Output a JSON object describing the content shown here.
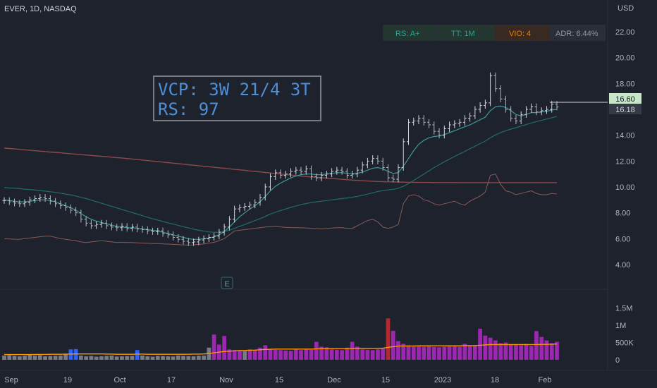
{
  "header": {
    "symbol_line": "EVER, 1D, NASDAQ",
    "currency": "USD"
  },
  "badges": [
    {
      "label": "RS: A+",
      "color": "#26a69a"
    },
    {
      "label": "TT: 1M",
      "color": "#26a69a"
    },
    {
      "label": "VIO: 4",
      "color": "#f57c00"
    },
    {
      "label": "ADR: 6.44%",
      "color": "#9598a1"
    }
  ],
  "annotation": {
    "line1": "VCP: 3W 21/4 3T",
    "line2": "RS: 97"
  },
  "price_labels": {
    "last": "16.60",
    "current": "16.18"
  },
  "earnings_marker": "E",
  "chart_data": {
    "type": "candlestick",
    "price_axis": {
      "ticks": [
        "22.00",
        "20.00",
        "18.00",
        "16.00",
        "14.00",
        "12.00",
        "10.00",
        "8.00",
        "6.00",
        "4.00"
      ],
      "range": [
        2,
        24
      ]
    },
    "volume_axis": {
      "ticks": [
        "1.5M",
        "1M",
        "500K",
        "0"
      ]
    },
    "x_labels": [
      "Sep",
      "19",
      "Oct",
      "17",
      "Nov",
      "15",
      "Dec",
      "15",
      "2023",
      "18",
      "Feb"
    ],
    "closes": [
      8.95,
      8.85,
      8.75,
      8.7,
      8.8,
      9.0,
      9.1,
      9.2,
      9.1,
      8.9,
      8.7,
      8.55,
      8.4,
      8.2,
      8.0,
      7.5,
      7.2,
      7.0,
      7.1,
      7.2,
      7.0,
      6.9,
      6.85,
      6.95,
      6.8,
      6.9,
      6.75,
      6.7,
      6.6,
      6.55,
      6.6,
      6.4,
      6.3,
      6.1,
      5.95,
      5.8,
      5.7,
      5.75,
      5.9,
      6.0,
      6.1,
      6.2,
      6.5,
      6.9,
      7.5,
      8.3,
      8.4,
      8.5,
      8.6,
      8.8,
      9.2,
      10.0,
      10.8,
      11.1,
      10.9,
      11.0,
      11.2,
      11.3,
      11.2,
      11.4,
      10.8,
      10.7,
      10.9,
      11.0,
      11.2,
      11.3,
      11.2,
      10.9,
      11.0,
      11.3,
      11.7,
      12.0,
      12.2,
      12.0,
      11.5,
      10.7,
      10.6,
      11.5,
      13.5,
      15.0,
      15.1,
      15.3,
      15.0,
      14.8,
      14.3,
      14.0,
      14.5,
      14.8,
      14.9,
      15.0,
      15.3,
      15.5,
      16.0,
      16.3,
      16.5,
      18.6,
      17.6,
      16.8,
      16.0,
      15.3,
      15.1,
      15.6,
      16.0,
      16.2,
      15.8,
      15.9,
      16.0,
      16.4,
      16.18
    ],
    "volumes_k": [
      120,
      130,
      110,
      100,
      115,
      140,
      120,
      130,
      100,
      110,
      115,
      120,
      160,
      300,
      310,
      120,
      100,
      110,
      90,
      100,
      110,
      120,
      95,
      100,
      105,
      110,
      280,
      120,
      100,
      90,
      110,
      105,
      100,
      95,
      120,
      110,
      105,
      100,
      115,
      120,
      350,
      730,
      440,
      690,
      300,
      280,
      260,
      250,
      300,
      290,
      350,
      420,
      300,
      290,
      280,
      270,
      260,
      300,
      280,
      310,
      290,
      520,
      380,
      360,
      300,
      290,
      280,
      350,
      520,
      380,
      300,
      290,
      280,
      300,
      320,
      1200,
      840,
      540,
      460,
      420,
      380,
      390,
      380,
      400,
      370,
      360,
      380,
      390,
      400,
      380,
      460,
      400,
      420,
      900,
      700,
      640,
      560,
      480,
      500,
      450,
      430,
      420,
      460,
      400,
      830,
      660,
      560,
      480,
      520
    ],
    "ma_short": [
      9.0,
      8.95,
      8.9,
      8.85,
      8.85,
      8.9,
      8.95,
      9.0,
      9.0,
      8.95,
      8.85,
      8.7,
      8.55,
      8.4,
      8.2,
      7.95,
      7.7,
      7.5,
      7.35,
      7.25,
      7.15,
      7.05,
      6.95,
      6.9,
      6.85,
      6.85,
      6.8,
      6.75,
      6.7,
      6.65,
      6.6,
      6.5,
      6.4,
      6.3,
      6.2,
      6.1,
      6.0,
      5.95,
      5.95,
      6.0,
      6.05,
      6.15,
      6.3,
      6.55,
      6.9,
      7.3,
      7.7,
      8.0,
      8.3,
      8.55,
      8.85,
      9.25,
      9.7,
      10.05,
      10.3,
      10.5,
      10.7,
      10.85,
      10.95,
      11.0,
      11.0,
      10.95,
      10.95,
      11.0,
      11.05,
      11.1,
      11.1,
      11.05,
      11.0,
      11.05,
      11.15,
      11.3,
      11.45,
      11.5,
      11.4,
      11.2,
      11.05,
      11.1,
      11.6,
      12.2,
      12.8,
      13.3,
      13.6,
      13.8,
      13.9,
      13.95,
      14.05,
      14.2,
      14.35,
      14.5,
      14.65,
      14.8,
      15.0,
      15.2,
      15.4,
      15.9,
      16.2,
      16.25,
      16.15,
      15.9,
      15.6,
      15.5,
      15.6,
      15.75,
      15.75,
      15.8,
      15.85,
      15.95,
      16.0
    ],
    "ma_mid": [
      9.95,
      9.92,
      9.9,
      9.87,
      9.83,
      9.8,
      9.76,
      9.72,
      9.68,
      9.63,
      9.58,
      9.52,
      9.45,
      9.38,
      9.3,
      9.2,
      9.1,
      8.98,
      8.86,
      8.74,
      8.62,
      8.5,
      8.38,
      8.26,
      8.14,
      8.02,
      7.9,
      7.78,
      7.66,
      7.54,
      7.43,
      7.33,
      7.23,
      7.13,
      7.03,
      6.93,
      6.83,
      6.73,
      6.65,
      6.58,
      6.52,
      6.5,
      6.5,
      6.55,
      6.65,
      6.8,
      6.95,
      7.1,
      7.25,
      7.4,
      7.55,
      7.72,
      7.9,
      8.05,
      8.18,
      8.3,
      8.42,
      8.53,
      8.63,
      8.72,
      8.79,
      8.85,
      8.9,
      8.95,
      9.0,
      9.05,
      9.1,
      9.15,
      9.2,
      9.27,
      9.35,
      9.45,
      9.55,
      9.65,
      9.72,
      9.77,
      9.82,
      9.9,
      10.05,
      10.25,
      10.5,
      10.75,
      11.0,
      11.25,
      11.5,
      11.72,
      11.95,
      12.15,
      12.35,
      12.55,
      12.75,
      12.95,
      13.15,
      13.35,
      13.55,
      13.8,
      14.02,
      14.2,
      14.35,
      14.47,
      14.58,
      14.7,
      14.82,
      14.95,
      15.05,
      15.15,
      15.25,
      15.35,
      15.45
    ],
    "ma_long": [
      13.0,
      12.97,
      12.94,
      12.9,
      12.87,
      12.84,
      12.8,
      12.77,
      12.74,
      12.7,
      12.67,
      12.64,
      12.6,
      12.57,
      12.54,
      12.5,
      12.47,
      12.44,
      12.4,
      12.37,
      12.34,
      12.3,
      12.27,
      12.24,
      12.2,
      12.16,
      12.12,
      12.08,
      12.04,
      12.0,
      11.96,
      11.92,
      11.88,
      11.84,
      11.8,
      11.76,
      11.72,
      11.68,
      11.64,
      11.6,
      11.56,
      11.52,
      11.48,
      11.44,
      11.4,
      11.36,
      11.32,
      11.28,
      11.24,
      11.2,
      11.16,
      11.12,
      11.08,
      11.04,
      11.0,
      10.96,
      10.92,
      10.88,
      10.84,
      10.8,
      10.77,
      10.74,
      10.71,
      10.68,
      10.65,
      10.62,
      10.59,
      10.56,
      10.53,
      10.5,
      10.48,
      10.46,
      10.44,
      10.42,
      10.41,
      10.4,
      10.39,
      10.38,
      10.37,
      10.36,
      10.36,
      10.35,
      10.35,
      10.35,
      10.34,
      10.34,
      10.34,
      10.34,
      10.34,
      10.33,
      10.33,
      10.33,
      10.33,
      10.33,
      10.33,
      10.33,
      10.33,
      10.33,
      10.33,
      10.33,
      10.33,
      10.33,
      10.33,
      10.33,
      10.33,
      10.33,
      10.33,
      10.33,
      10.33
    ],
    "rs_line": [
      6.0,
      5.98,
      5.96,
      5.95,
      6.0,
      6.05,
      6.1,
      6.15,
      6.2,
      6.2,
      6.1,
      6.0,
      5.95,
      5.9,
      5.85,
      5.75,
      5.7,
      5.75,
      5.8,
      5.85,
      5.8,
      5.75,
      5.7,
      5.72,
      5.7,
      5.7,
      5.68,
      5.66,
      5.64,
      5.62,
      5.62,
      5.6,
      5.58,
      5.56,
      5.54,
      5.52,
      5.5,
      5.52,
      5.56,
      5.6,
      5.66,
      5.72,
      5.85,
      6.0,
      6.3,
      6.6,
      6.65,
      6.7,
      6.75,
      6.8,
      6.85,
      6.9,
      6.92,
      6.95,
      6.9,
      6.88,
      6.86,
      6.85,
      6.84,
      6.83,
      6.8,
      6.78,
      6.76,
      6.78,
      6.82,
      6.85,
      6.85,
      6.8,
      6.8,
      7.0,
      7.2,
      7.4,
      7.5,
      7.3,
      6.9,
      6.8,
      6.9,
      7.1,
      8.7,
      9.3,
      9.4,
      9.3,
      9.0,
      8.9,
      8.7,
      8.6,
      8.7,
      8.8,
      8.9,
      8.7,
      8.6,
      8.9,
      9.1,
      9.3,
      9.6,
      10.9,
      11.0,
      10.2,
      9.7,
      9.6,
      9.4,
      9.5,
      9.6,
      9.7,
      9.5,
      9.4,
      9.4,
      9.5,
      9.45
    ],
    "ma_volume_k": [
      150,
      150,
      150,
      150,
      150,
      150,
      155,
      155,
      155,
      160,
      160,
      160,
      165,
      165,
      170,
      170,
      170,
      170,
      170,
      170,
      165,
      165,
      160,
      160,
      160,
      160,
      165,
      165,
      160,
      160,
      160,
      160,
      160,
      160,
      160,
      160,
      160,
      165,
      165,
      170,
      180,
      200,
      220,
      240,
      250,
      260,
      265,
      270,
      275,
      280,
      290,
      300,
      305,
      310,
      310,
      310,
      310,
      310,
      310,
      310,
      310,
      315,
      320,
      320,
      320,
      320,
      320,
      320,
      325,
      330,
      330,
      330,
      330,
      330,
      335,
      360,
      380,
      395,
      400,
      400,
      400,
      405,
      405,
      405,
      405,
      405,
      405,
      405,
      405,
      405,
      410,
      410,
      410,
      420,
      430,
      440,
      440,
      440,
      440,
      440,
      440,
      440,
      440,
      440,
      440,
      445,
      445,
      450,
      455
    ]
  }
}
